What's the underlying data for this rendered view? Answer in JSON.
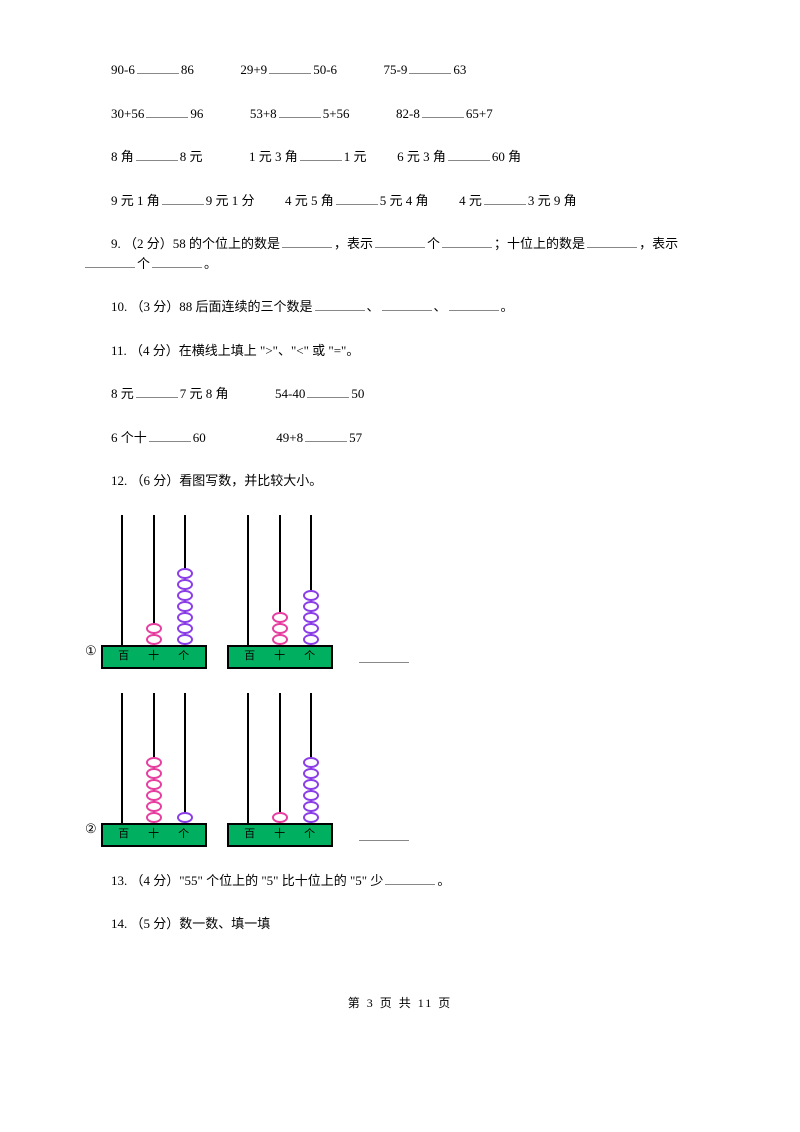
{
  "rows": {
    "r1": {
      "a_l": "90-6",
      "a_r": "86",
      "b_l": "29+9",
      "b_r": "50-6",
      "c_l": "75-9",
      "c_r": "63"
    },
    "r2": {
      "a_l": "30+56",
      "a_r": "96",
      "b_l": "53+8",
      "b_r": "5+56",
      "c_l": "82-8",
      "c_r": "65+7"
    },
    "r3": {
      "a_l": "8 角",
      "a_r": "8 元",
      "b_l": "1 元 3 角",
      "b_r": "1 元",
      "c_l": "6 元 3 角",
      "c_r": "60 角"
    },
    "r4": {
      "a_l": "9 元 1 角",
      "a_r": "9 元 1 分",
      "b_l": "4 元 5 角",
      "b_r": "5 元 4 角",
      "c_l": "4 元",
      "c_r": "3 元 9 角"
    }
  },
  "q9": {
    "prefix": "9.  （2 分）58 的个位上的数是",
    "t2_pre": "，表示",
    "t2_mid": "个",
    "t3_pre": "；十位上的数是",
    "t4_pre": "，表示",
    "t4_mid": "个",
    "suffix": "。"
  },
  "q10": {
    "prefix": "10.  （3 分）88 后面连续的三个数是",
    "sep": "、",
    "suffix": "。"
  },
  "q11": {
    "title": "11.  （4 分）在横线上填上 \">\"、\"<\" 或 \"=\"。",
    "row1": {
      "a_l": "8 元",
      "a_r": "7 元 8 角",
      "b_l": "54-40",
      "b_r": "50"
    },
    "row2": {
      "a_l": "6 个十",
      "a_r": "60",
      "b_l": "49+8",
      "b_r": "57"
    }
  },
  "q12": {
    "title": "12.  （6 分）看图写数，并比较大小。",
    "label1": "①",
    "label2": "②",
    "base_labels": {
      "h": "百",
      "t": "十",
      "o": "个"
    },
    "colors": {
      "base": "#00b060",
      "bead_pink": "#e83ea0",
      "bead_purple": "#8b3ee8",
      "rod": "#000000"
    },
    "abaci": {
      "a1_left": {
        "h": 0,
        "t_pink": 2,
        "o_purple": 7
      },
      "a1_right": {
        "h": 0,
        "t_pink": 3,
        "o_purple": 5
      },
      "a2_left": {
        "h": 0,
        "t_pink": 6,
        "o_purple": 1
      },
      "a2_right": {
        "h": 0,
        "t_pink": 1,
        "o_purple": 6
      }
    }
  },
  "q13": {
    "prefix": "13.  （4 分）\"55\" 个位上的 \"5\" 比十位上的 \"5\" 少",
    "suffix": "。"
  },
  "q14": {
    "text": "14.  （5 分）数一数、填一填"
  },
  "footer": {
    "text": "第 3 页 共 11 页"
  }
}
